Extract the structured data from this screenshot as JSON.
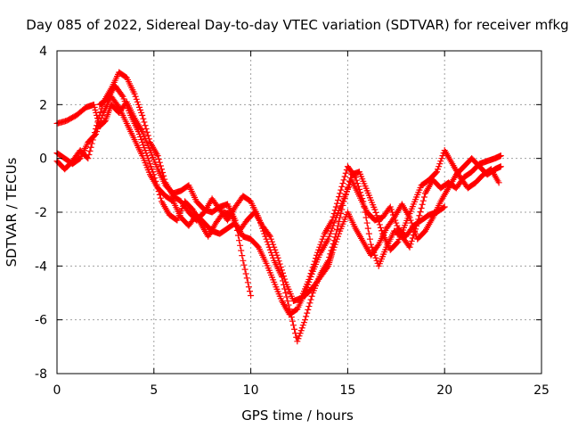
{
  "chart_data": {
    "type": "scatter",
    "title": "Day 085 of 2022, Sidereal Day-to-day VTEC variation (SDTVAR) for receiver mfkg",
    "xlabel": "GPS time / hours",
    "ylabel": "SDTVAR / TECUs",
    "xlim": [
      0,
      25
    ],
    "ylim": [
      -8,
      4
    ],
    "xticks": [
      0,
      5,
      10,
      15,
      20,
      25
    ],
    "yticks": [
      -8,
      -6,
      -4,
      -2,
      0,
      2,
      4
    ],
    "x_tick_labels": [
      "0",
      "5",
      "10",
      "15",
      "20",
      "25"
    ],
    "y_tick_labels": [
      "-8",
      "-6",
      "-4",
      "-2",
      "0",
      "2",
      "4"
    ],
    "grid": true,
    "marker": "plus",
    "series_color": "#ff0000",
    "series": [
      {
        "points": [
          [
            0.0,
            1.3
          ],
          [
            0.5,
            1.4
          ],
          [
            1.0,
            1.6
          ],
          [
            1.5,
            1.9
          ],
          [
            1.9,
            2.0
          ],
          [
            2.2,
            1.2
          ],
          [
            2.5,
            1.4
          ],
          [
            2.8,
            2.0
          ],
          [
            3.2,
            1.7
          ],
          [
            3.6,
            2.1
          ],
          [
            4.0,
            1.5
          ],
          [
            4.4,
            1.0
          ],
          [
            4.8,
            0.3
          ],
          [
            5.2,
            -0.4
          ],
          [
            5.6,
            -1.0
          ],
          [
            6.0,
            -1.3
          ],
          [
            6.4,
            -1.2
          ],
          [
            6.8,
            -1.0
          ],
          [
            7.2,
            -1.6
          ],
          [
            7.6,
            -1.9
          ],
          [
            8.0,
            -2.0
          ],
          [
            8.4,
            -1.8
          ],
          [
            8.8,
            -1.7
          ],
          [
            9.2,
            -2.3
          ],
          [
            9.6,
            -3.8
          ],
          [
            10.0,
            -5.1
          ]
        ]
      },
      {
        "points": [
          [
            0.0,
            0.2
          ],
          [
            0.4,
            0.0
          ],
          [
            0.8,
            -0.2
          ],
          [
            1.2,
            0.0
          ],
          [
            1.6,
            0.6
          ],
          [
            2.0,
            0.9
          ],
          [
            2.4,
            1.7
          ],
          [
            2.8,
            2.3
          ],
          [
            3.2,
            1.9
          ],
          [
            3.6,
            1.3
          ],
          [
            4.0,
            0.7
          ],
          [
            4.4,
            0.1
          ],
          [
            4.8,
            -0.6
          ],
          [
            5.2,
            -1.1
          ],
          [
            5.6,
            -1.4
          ],
          [
            6.0,
            -1.6
          ],
          [
            6.4,
            -2.2
          ],
          [
            6.8,
            -2.5
          ],
          [
            7.2,
            -2.1
          ],
          [
            7.6,
            -2.4
          ],
          [
            8.0,
            -2.7
          ],
          [
            8.4,
            -2.8
          ],
          [
            8.8,
            -2.6
          ],
          [
            9.2,
            -2.4
          ],
          [
            9.6,
            -2.9
          ],
          [
            10.0,
            -3.0
          ],
          [
            10.4,
            -3.3
          ],
          [
            10.8,
            -3.9
          ],
          [
            11.2,
            -4.6
          ],
          [
            11.6,
            -5.3
          ],
          [
            12.0,
            -5.8
          ],
          [
            12.4,
            -5.6
          ],
          [
            12.8,
            -5.0
          ],
          [
            13.2,
            -4.2
          ],
          [
            13.6,
            -3.5
          ],
          [
            14.0,
            -3.0
          ],
          [
            14.4,
            -2.2
          ],
          [
            14.8,
            -1.5
          ],
          [
            15.2,
            -0.8
          ],
          [
            15.6,
            -1.4
          ],
          [
            16.0,
            -2.0
          ],
          [
            16.4,
            -2.3
          ],
          [
            16.8,
            -2.2
          ],
          [
            17.2,
            -1.8
          ],
          [
            17.6,
            -2.6
          ],
          [
            18.0,
            -2.9
          ],
          [
            18.4,
            -2.5
          ],
          [
            18.8,
            -2.3
          ],
          [
            19.2,
            -2.1
          ],
          [
            19.6,
            -2.0
          ],
          [
            20.0,
            -1.8
          ]
        ]
      },
      {
        "points": [
          [
            0.0,
            -0.1
          ],
          [
            0.4,
            -0.4
          ],
          [
            0.8,
            -0.1
          ],
          [
            1.2,
            0.3
          ],
          [
            1.6,
            0.0
          ],
          [
            2.0,
            1.1
          ],
          [
            2.4,
            2.1
          ],
          [
            2.8,
            2.6
          ],
          [
            3.2,
            3.2
          ],
          [
            3.6,
            3.0
          ],
          [
            4.0,
            2.4
          ],
          [
            4.4,
            1.6
          ],
          [
            4.8,
            0.6
          ],
          [
            5.2,
            0.1
          ],
          [
            5.6,
            -0.9
          ],
          [
            6.0,
            -1.4
          ],
          [
            6.4,
            -1.6
          ],
          [
            6.8,
            -2.0
          ],
          [
            7.2,
            -2.3
          ],
          [
            7.6,
            -2.0
          ],
          [
            8.0,
            -1.5
          ],
          [
            8.4,
            -1.9
          ],
          [
            8.8,
            -2.3
          ],
          [
            9.2,
            -1.8
          ],
          [
            9.6,
            -1.4
          ],
          [
            10.0,
            -1.6
          ],
          [
            10.4,
            -2.2
          ],
          [
            10.8,
            -3.0
          ],
          [
            11.2,
            -3.8
          ],
          [
            11.6,
            -4.4
          ],
          [
            12.0,
            -5.6
          ],
          [
            12.4,
            -6.8
          ],
          [
            12.8,
            -6.0
          ],
          [
            13.2,
            -5.0
          ],
          [
            13.6,
            -4.3
          ],
          [
            14.0,
            -3.8
          ],
          [
            14.4,
            -2.8
          ],
          [
            14.8,
            -1.6
          ],
          [
            15.2,
            -0.6
          ],
          [
            15.6,
            -0.5
          ],
          [
            16.0,
            -1.2
          ],
          [
            16.4,
            -1.9
          ],
          [
            16.8,
            -2.8
          ],
          [
            17.2,
            -3.4
          ],
          [
            17.6,
            -3.1
          ],
          [
            18.0,
            -2.4
          ],
          [
            18.4,
            -1.7
          ],
          [
            18.8,
            -1.0
          ],
          [
            19.2,
            -0.8
          ],
          [
            19.6,
            -0.5
          ],
          [
            20.0,
            0.3
          ],
          [
            20.4,
            -0.2
          ],
          [
            20.8,
            -0.7
          ],
          [
            21.2,
            -1.1
          ],
          [
            21.6,
            -0.9
          ],
          [
            22.0,
            -0.6
          ],
          [
            22.4,
            -0.4
          ],
          [
            22.8,
            -0.9
          ]
        ]
      },
      {
        "points": [
          [
            2.2,
            2.0
          ],
          [
            2.6,
            2.2
          ],
          [
            3.0,
            2.7
          ],
          [
            3.4,
            2.3
          ],
          [
            3.8,
            1.6
          ],
          [
            4.2,
            1.0
          ],
          [
            4.6,
            0.2
          ],
          [
            5.0,
            -0.6
          ],
          [
            5.4,
            -1.6
          ],
          [
            5.8,
            -2.1
          ],
          [
            6.2,
            -2.3
          ],
          [
            6.6,
            -1.6
          ],
          [
            7.0,
            -1.9
          ],
          [
            7.4,
            -2.4
          ],
          [
            7.8,
            -2.9
          ],
          [
            8.2,
            -2.4
          ],
          [
            8.6,
            -2.0
          ],
          [
            9.0,
            -2.1
          ],
          [
            9.4,
            -2.7
          ],
          [
            9.8,
            -2.3
          ],
          [
            10.2,
            -2.0
          ],
          [
            10.6,
            -2.5
          ],
          [
            11.0,
            -2.9
          ],
          [
            11.4,
            -3.7
          ],
          [
            11.8,
            -4.6
          ],
          [
            12.2,
            -5.3
          ],
          [
            12.6,
            -5.2
          ],
          [
            13.0,
            -4.5
          ],
          [
            13.4,
            -3.6
          ],
          [
            13.8,
            -2.8
          ],
          [
            14.2,
            -2.3
          ],
          [
            14.6,
            -1.3
          ],
          [
            15.0,
            -0.3
          ],
          [
            15.4,
            -0.7
          ],
          [
            15.8,
            -1.6
          ],
          [
            16.2,
            -3.2
          ],
          [
            16.6,
            -4.0
          ],
          [
            17.0,
            -3.3
          ],
          [
            17.4,
            -2.7
          ],
          [
            17.8,
            -2.9
          ],
          [
            18.2,
            -3.3
          ],
          [
            18.6,
            -2.4
          ],
          [
            19.0,
            -1.3
          ],
          [
            19.4,
            -0.8
          ],
          [
            19.8,
            -1.1
          ],
          [
            20.2,
            -0.9
          ],
          [
            20.6,
            -1.1
          ],
          [
            21.0,
            -0.7
          ],
          [
            21.4,
            -0.5
          ],
          [
            21.8,
            -0.2
          ],
          [
            22.2,
            -0.1
          ],
          [
            22.6,
            0.0
          ],
          [
            22.9,
            0.1
          ]
        ]
      },
      {
        "points": [
          [
            12.8,
            -5.1
          ],
          [
            13.2,
            -4.8
          ],
          [
            13.6,
            -4.4
          ],
          [
            14.0,
            -4.0
          ],
          [
            14.2,
            -3.5
          ],
          [
            14.6,
            -2.7
          ],
          [
            15.0,
            -2.0
          ],
          [
            15.4,
            -2.6
          ],
          [
            15.8,
            -3.1
          ],
          [
            16.2,
            -3.6
          ],
          [
            16.6,
            -3.2
          ],
          [
            17.0,
            -2.6
          ],
          [
            17.4,
            -2.2
          ],
          [
            17.8,
            -1.7
          ],
          [
            18.2,
            -2.2
          ],
          [
            18.6,
            -3.0
          ],
          [
            19.0,
            -2.7
          ],
          [
            19.4,
            -2.2
          ],
          [
            19.8,
            -1.6
          ],
          [
            20.2,
            -1.1
          ],
          [
            20.6,
            -0.6
          ],
          [
            21.0,
            -0.3
          ],
          [
            21.4,
            0.0
          ],
          [
            21.8,
            -0.3
          ],
          [
            22.2,
            -0.6
          ],
          [
            22.6,
            -0.4
          ],
          [
            22.9,
            -0.3
          ]
        ]
      }
    ]
  }
}
